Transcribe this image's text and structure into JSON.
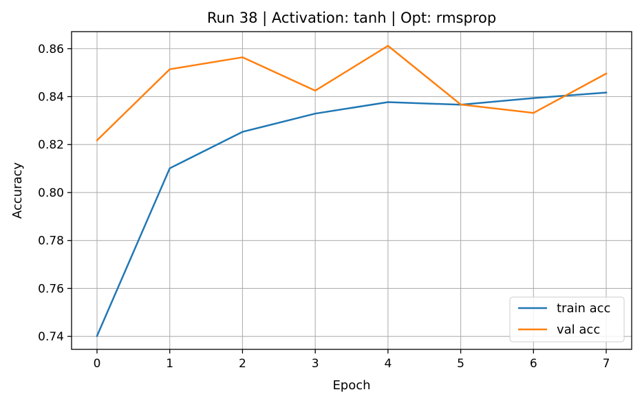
{
  "chart_data": {
    "type": "line",
    "title": "Run 38 | Activation: tanh | Opt: rmsprop",
    "xlabel": "Epoch",
    "ylabel": "Accuracy",
    "x": [
      0,
      1,
      2,
      3,
      4,
      5,
      6,
      7
    ],
    "xticks": [
      0,
      1,
      2,
      3,
      4,
      5,
      6,
      7
    ],
    "xlim": [
      -0.35,
      7.35
    ],
    "yticks": [
      0.74,
      0.76,
      0.78,
      0.8,
      0.82,
      0.84,
      0.86
    ],
    "ytick_labels": [
      "0.74",
      "0.76",
      "0.78",
      "0.80",
      "0.82",
      "0.84",
      "0.86"
    ],
    "ylim": [
      0.7346,
      0.8671
    ],
    "grid": true,
    "legend_position": "lower-right",
    "series": [
      {
        "name": "train acc",
        "color": "#1f77b4",
        "values": [
          0.7402,
          0.8101,
          0.8253,
          0.8329,
          0.8377,
          0.8366,
          0.8394,
          0.8417
        ]
      },
      {
        "name": "val acc",
        "color": "#ff7f0e",
        "values": [
          0.8218,
          0.8514,
          0.8564,
          0.8425,
          0.8612,
          0.8367,
          0.8332,
          0.8496
        ]
      }
    ]
  }
}
